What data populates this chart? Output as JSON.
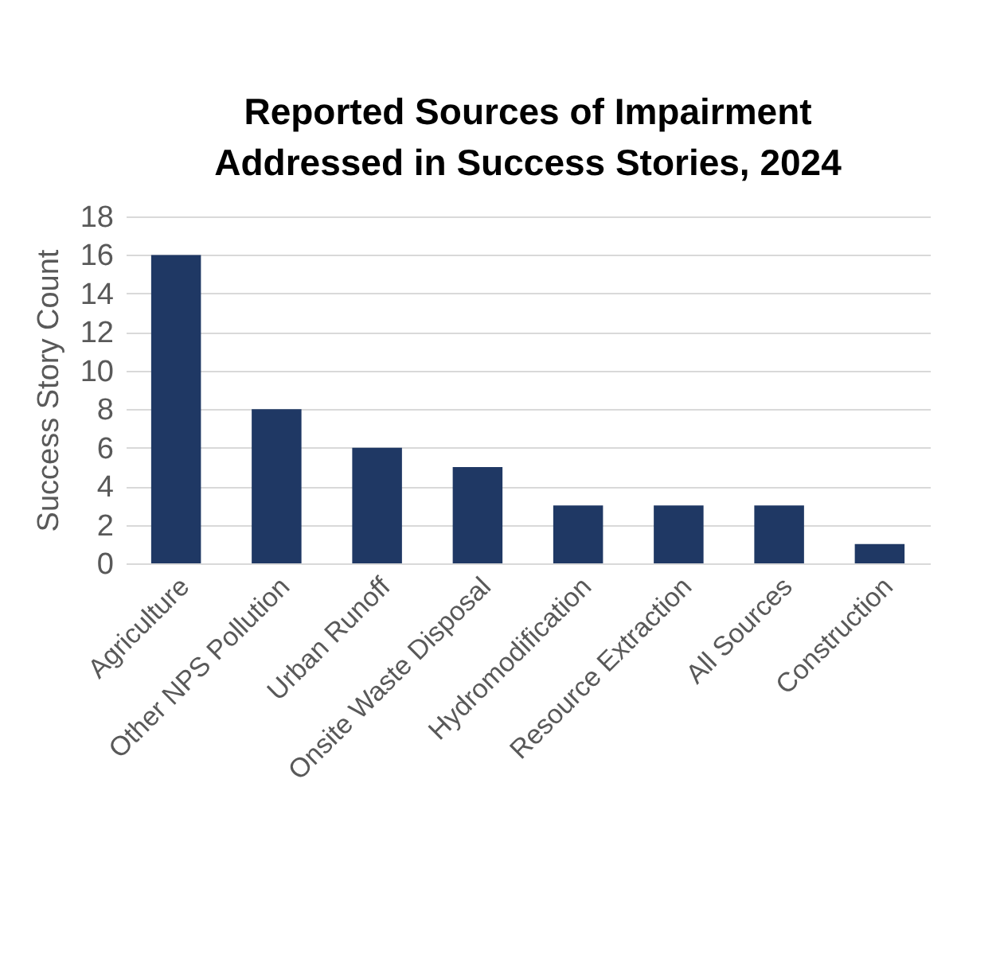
{
  "chart_data": {
    "type": "bar",
    "title": "Reported Sources of Impairment Addressed in Success Stories, 2024",
    "ylabel": "Success Story Count",
    "categories": [
      "Agriculture",
      "Other NPS Pollution",
      "Urban Runoff",
      "Onsite Waste Disposal",
      "Hydromodification",
      "Resource Extraction",
      "All Sources",
      "Construction"
    ],
    "values": [
      16,
      8,
      6,
      5,
      3,
      3,
      3,
      1
    ],
    "color": "#1f3864",
    "ylim": [
      0,
      18
    ],
    "yticks": [
      0,
      2,
      4,
      6,
      8,
      10,
      12,
      14,
      16,
      18
    ],
    "grid": "y"
  }
}
